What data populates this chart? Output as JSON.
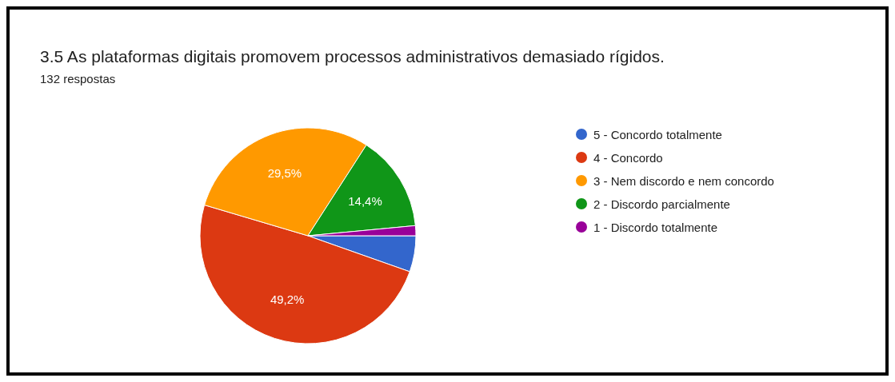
{
  "chart_data": {
    "type": "pie",
    "title": "3.5  As plataformas digitais promovem processos administrativos demasiado rígidos.",
    "subtitle": "132 respostas",
    "categories": [
      "5 - Concordo totalmente",
      "4 - Concordo",
      "3 - Nem discordo e nem concordo",
      "2 - Discordo parcialmente",
      "1 - Discordo totalmente"
    ],
    "values": [
      5.4,
      49.2,
      29.5,
      14.4,
      1.5
    ],
    "colors": [
      "#3366cc",
      "#dc3912",
      "#ff9900",
      "#109618",
      "#990099"
    ],
    "value_labels": [
      null,
      "49,2%",
      "29,5%",
      "14,4%",
      null
    ],
    "legend": "right"
  }
}
